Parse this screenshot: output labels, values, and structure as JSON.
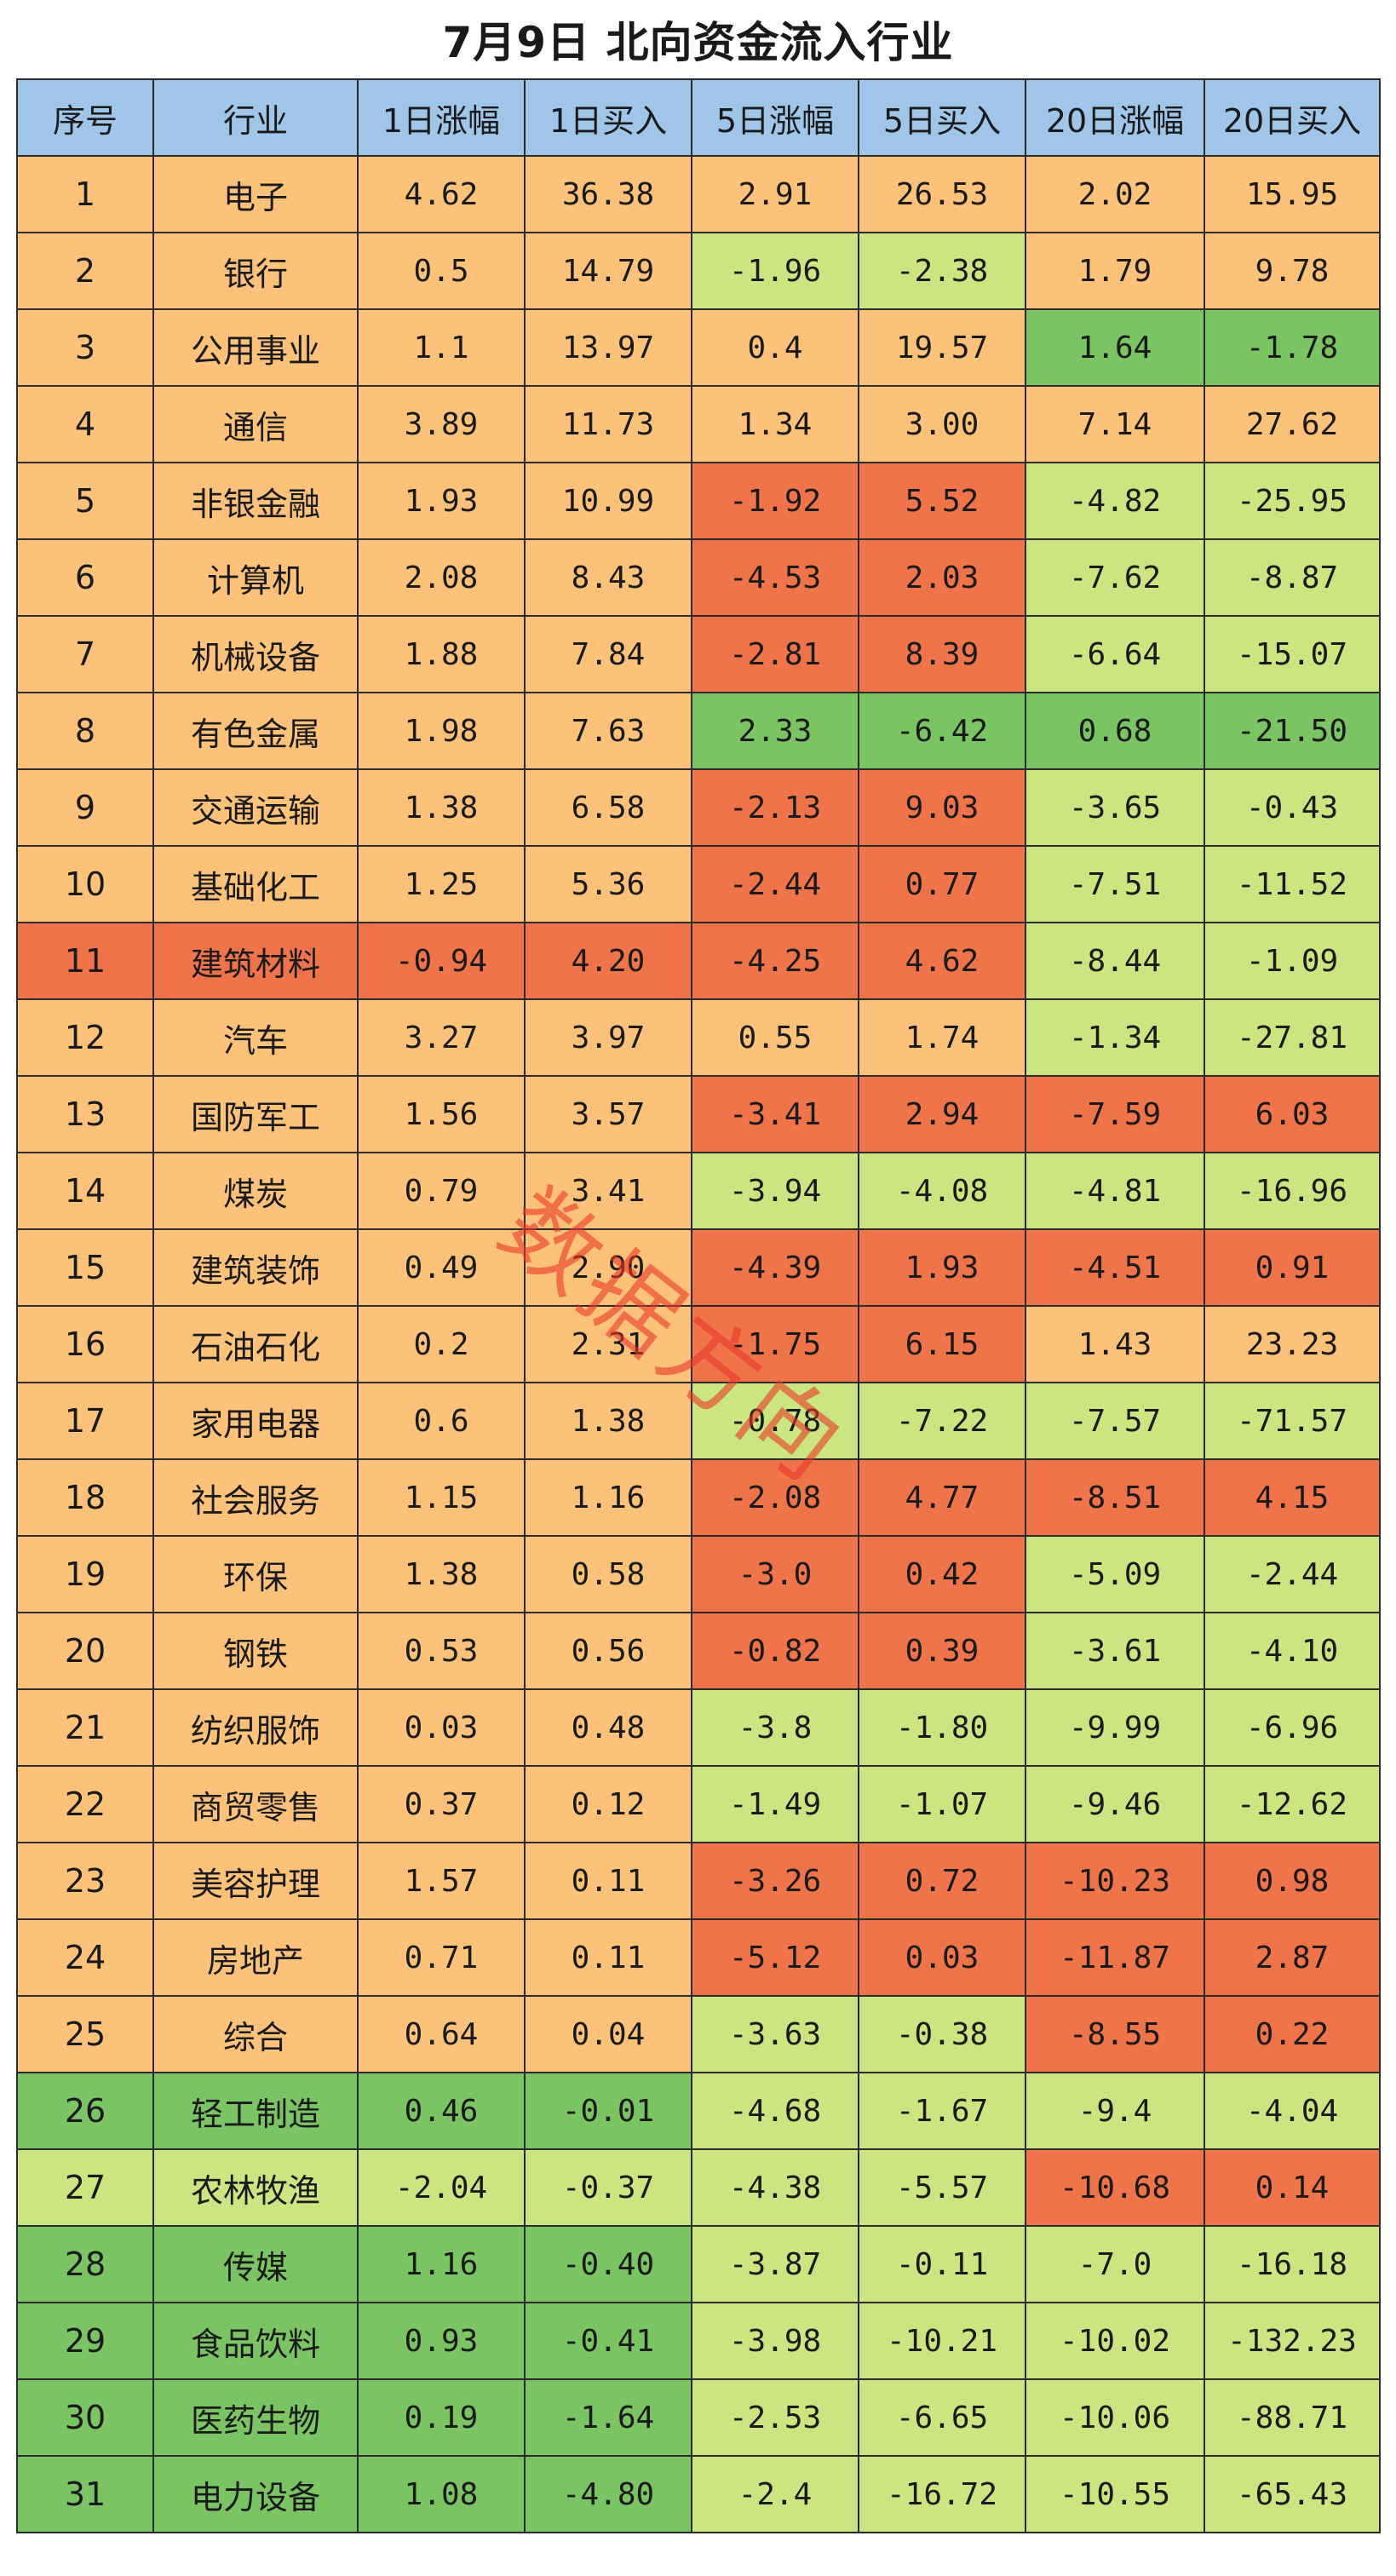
{
  "title": "7月9日 北向资金流入行业",
  "watermark": "数据方向",
  "colors": {
    "header": "#9fc5e8",
    "o": "#fcc27a",
    "r": "#f0744a",
    "g": "#7bc463",
    "l": "#cbe681"
  },
  "headers": [
    "序号",
    "行业",
    "1日涨幅",
    "1日买入",
    "5日涨幅",
    "5日买入",
    "20日涨幅",
    "20日买入"
  ],
  "rows": [
    {
      "c": [
        "1",
        "电子",
        "4.62",
        "36.38",
        "2.91",
        "26.53",
        "2.02",
        "15.95"
      ],
      "bg": [
        "o",
        "o",
        "o",
        "o",
        "o",
        "o",
        "o",
        "o"
      ]
    },
    {
      "c": [
        "2",
        "银行",
        "0.5",
        "14.79",
        "-1.96",
        "-2.38",
        "1.79",
        "9.78"
      ],
      "bg": [
        "o",
        "o",
        "o",
        "o",
        "l",
        "l",
        "o",
        "o"
      ]
    },
    {
      "c": [
        "3",
        "公用事业",
        "1.1",
        "13.97",
        "0.4",
        "19.57",
        "1.64",
        "-1.78"
      ],
      "bg": [
        "o",
        "o",
        "o",
        "o",
        "o",
        "o",
        "g",
        "g"
      ]
    },
    {
      "c": [
        "4",
        "通信",
        "3.89",
        "11.73",
        "1.34",
        "3.00",
        "7.14",
        "27.62"
      ],
      "bg": [
        "o",
        "o",
        "o",
        "o",
        "o",
        "o",
        "o",
        "o"
      ]
    },
    {
      "c": [
        "5",
        "非银金融",
        "1.93",
        "10.99",
        "-1.92",
        "5.52",
        "-4.82",
        "-25.95"
      ],
      "bg": [
        "o",
        "o",
        "o",
        "o",
        "r",
        "r",
        "l",
        "l"
      ]
    },
    {
      "c": [
        "6",
        "计算机",
        "2.08",
        "8.43",
        "-4.53",
        "2.03",
        "-7.62",
        "-8.87"
      ],
      "bg": [
        "o",
        "o",
        "o",
        "o",
        "r",
        "r",
        "l",
        "l"
      ]
    },
    {
      "c": [
        "7",
        "机械设备",
        "1.88",
        "7.84",
        "-2.81",
        "8.39",
        "-6.64",
        "-15.07"
      ],
      "bg": [
        "o",
        "o",
        "o",
        "o",
        "r",
        "r",
        "l",
        "l"
      ]
    },
    {
      "c": [
        "8",
        "有色金属",
        "1.98",
        "7.63",
        "2.33",
        "-6.42",
        "0.68",
        "-21.50"
      ],
      "bg": [
        "o",
        "o",
        "o",
        "o",
        "g",
        "g",
        "g",
        "g"
      ]
    },
    {
      "c": [
        "9",
        "交通运输",
        "1.38",
        "6.58",
        "-2.13",
        "9.03",
        "-3.65",
        "-0.43"
      ],
      "bg": [
        "o",
        "o",
        "o",
        "o",
        "r",
        "r",
        "l",
        "l"
      ]
    },
    {
      "c": [
        "10",
        "基础化工",
        "1.25",
        "5.36",
        "-2.44",
        "0.77",
        "-7.51",
        "-11.52"
      ],
      "bg": [
        "o",
        "o",
        "o",
        "o",
        "r",
        "r",
        "l",
        "l"
      ]
    },
    {
      "c": [
        "11",
        "建筑材料",
        "-0.94",
        "4.20",
        "-4.25",
        "4.62",
        "-8.44",
        "-1.09"
      ],
      "bg": [
        "r",
        "r",
        "r",
        "r",
        "r",
        "r",
        "l",
        "l"
      ]
    },
    {
      "c": [
        "12",
        "汽车",
        "3.27",
        "3.97",
        "0.55",
        "1.74",
        "-1.34",
        "-27.81"
      ],
      "bg": [
        "o",
        "o",
        "o",
        "o",
        "o",
        "o",
        "l",
        "l"
      ]
    },
    {
      "c": [
        "13",
        "国防军工",
        "1.56",
        "3.57",
        "-3.41",
        "2.94",
        "-7.59",
        "6.03"
      ],
      "bg": [
        "o",
        "o",
        "o",
        "o",
        "r",
        "r",
        "r",
        "r"
      ]
    },
    {
      "c": [
        "14",
        "煤炭",
        "0.79",
        "3.41",
        "-3.94",
        "-4.08",
        "-4.81",
        "-16.96"
      ],
      "bg": [
        "o",
        "o",
        "o",
        "o",
        "l",
        "l",
        "l",
        "l"
      ]
    },
    {
      "c": [
        "15",
        "建筑装饰",
        "0.49",
        "2.90",
        "-4.39",
        "1.93",
        "-4.51",
        "0.91"
      ],
      "bg": [
        "o",
        "o",
        "o",
        "o",
        "r",
        "r",
        "r",
        "r"
      ]
    },
    {
      "c": [
        "16",
        "石油石化",
        "0.2",
        "2.31",
        "-1.75",
        "6.15",
        "1.43",
        "23.23"
      ],
      "bg": [
        "o",
        "o",
        "o",
        "o",
        "r",
        "r",
        "o",
        "o"
      ]
    },
    {
      "c": [
        "17",
        "家用电器",
        "0.6",
        "1.38",
        "-0.78",
        "-7.22",
        "-7.57",
        "-71.57"
      ],
      "bg": [
        "o",
        "o",
        "o",
        "o",
        "l",
        "l",
        "l",
        "l"
      ]
    },
    {
      "c": [
        "18",
        "社会服务",
        "1.15",
        "1.16",
        "-2.08",
        "4.77",
        "-8.51",
        "4.15"
      ],
      "bg": [
        "o",
        "o",
        "o",
        "o",
        "r",
        "r",
        "r",
        "r"
      ]
    },
    {
      "c": [
        "19",
        "环保",
        "1.38",
        "0.58",
        "-3.0",
        "0.42",
        "-5.09",
        "-2.44"
      ],
      "bg": [
        "o",
        "o",
        "o",
        "o",
        "r",
        "r",
        "l",
        "l"
      ]
    },
    {
      "c": [
        "20",
        "钢铁",
        "0.53",
        "0.56",
        "-0.82",
        "0.39",
        "-3.61",
        "-4.10"
      ],
      "bg": [
        "o",
        "o",
        "o",
        "o",
        "r",
        "r",
        "l",
        "l"
      ]
    },
    {
      "c": [
        "21",
        "纺织服饰",
        "0.03",
        "0.48",
        "-3.8",
        "-1.80",
        "-9.99",
        "-6.96"
      ],
      "bg": [
        "o",
        "o",
        "o",
        "o",
        "l",
        "l",
        "l",
        "l"
      ]
    },
    {
      "c": [
        "22",
        "商贸零售",
        "0.37",
        "0.12",
        "-1.49",
        "-1.07",
        "-9.46",
        "-12.62"
      ],
      "bg": [
        "o",
        "o",
        "o",
        "o",
        "l",
        "l",
        "l",
        "l"
      ]
    },
    {
      "c": [
        "23",
        "美容护理",
        "1.57",
        "0.11",
        "-3.26",
        "0.72",
        "-10.23",
        "0.98"
      ],
      "bg": [
        "o",
        "o",
        "o",
        "o",
        "r",
        "r",
        "r",
        "r"
      ]
    },
    {
      "c": [
        "24",
        "房地产",
        "0.71",
        "0.11",
        "-5.12",
        "0.03",
        "-11.87",
        "2.87"
      ],
      "bg": [
        "o",
        "o",
        "o",
        "o",
        "r",
        "r",
        "r",
        "r"
      ]
    },
    {
      "c": [
        "25",
        "综合",
        "0.64",
        "0.04",
        "-3.63",
        "-0.38",
        "-8.55",
        "0.22"
      ],
      "bg": [
        "o",
        "o",
        "o",
        "o",
        "l",
        "l",
        "r",
        "r"
      ]
    },
    {
      "c": [
        "26",
        "轻工制造",
        "0.46",
        "-0.01",
        "-4.68",
        "-1.67",
        "-9.4",
        "-4.04"
      ],
      "bg": [
        "g",
        "g",
        "g",
        "g",
        "l",
        "l",
        "l",
        "l"
      ]
    },
    {
      "c": [
        "27",
        "农林牧渔",
        "-2.04",
        "-0.37",
        "-4.38",
        "-5.57",
        "-10.68",
        "0.14"
      ],
      "bg": [
        "l",
        "l",
        "l",
        "l",
        "l",
        "l",
        "r",
        "r"
      ]
    },
    {
      "c": [
        "28",
        "传媒",
        "1.16",
        "-0.40",
        "-3.87",
        "-0.11",
        "-7.0",
        "-16.18"
      ],
      "bg": [
        "g",
        "g",
        "g",
        "g",
        "l",
        "l",
        "l",
        "l"
      ]
    },
    {
      "c": [
        "29",
        "食品饮料",
        "0.93",
        "-0.41",
        "-3.98",
        "-10.21",
        "-10.02",
        "-132.23"
      ],
      "bg": [
        "g",
        "g",
        "g",
        "g",
        "l",
        "l",
        "l",
        "l"
      ]
    },
    {
      "c": [
        "30",
        "医药生物",
        "0.19",
        "-1.64",
        "-2.53",
        "-6.65",
        "-10.06",
        "-88.71"
      ],
      "bg": [
        "g",
        "g",
        "g",
        "g",
        "l",
        "l",
        "l",
        "l"
      ]
    },
    {
      "c": [
        "31",
        "电力设备",
        "1.08",
        "-4.80",
        "-2.4",
        "-16.72",
        "-10.55",
        "-65.43"
      ],
      "bg": [
        "g",
        "g",
        "g",
        "g",
        "l",
        "l",
        "l",
        "l"
      ]
    }
  ]
}
